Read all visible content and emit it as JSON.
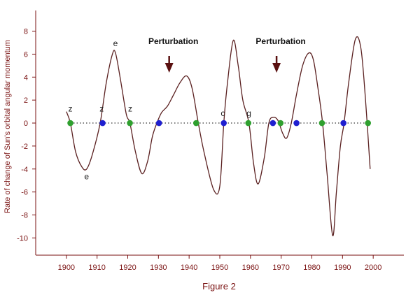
{
  "chart_data": {
    "type": "line",
    "xlabel": "Figure 2",
    "ylabel": "Rate of change of Sun's orbital angular momentum",
    "xlim": [
      1890,
      2010
    ],
    "ylim": [
      -11.5,
      9.8
    ],
    "x_ticks": [
      1900,
      1910,
      1920,
      1930,
      1940,
      1950,
      1960,
      1970,
      1980,
      1990,
      2000
    ],
    "y_ticks": [
      8,
      6,
      4,
      2,
      0,
      -2,
      -4,
      -6,
      -8,
      -10
    ],
    "grid": false,
    "colors": {
      "line": "#5a2020",
      "axis": "#7a1212",
      "green": "#2fa02f",
      "blue": "#1f1fd0",
      "arrow": "#5a1010"
    },
    "series": [
      {
        "x": [
          1900.0,
          1901.3,
          1903.0,
          1905.0,
          1906.6,
          1908.5,
          1911.0,
          1913.0,
          1915.0,
          1916.0,
          1917.5,
          1919.5,
          1920.7,
          1922.5,
          1924.6,
          1926.5,
          1928.0,
          1929.5,
          1931.0,
          1933.0,
          1935.0,
          1937.0,
          1939.2,
          1941.0,
          1943.0,
          1945.0,
          1948.0,
          1950.0,
          1951.3,
          1952.5,
          1954.4,
          1956.0,
          1957.5,
          1959.5,
          1961.0,
          1962.5,
          1964.5,
          1966.0,
          1967.5,
          1969.0,
          1970.5,
          1971.8,
          1973.3,
          1975.0,
          1977.0,
          1979.0,
          1980.5,
          1982.0,
          1983.5,
          1985.0,
          1986.8,
          1988.0,
          1989.3,
          1990.5,
          1992.0,
          1994.2,
          1996.0,
          1997.5,
          1999.0
        ],
        "y": [
          1.0,
          0.0,
          -2.5,
          -3.8,
          -4.0,
          -2.7,
          0.0,
          3.5,
          6.0,
          6.1,
          4.0,
          0.8,
          0.0,
          -2.5,
          -4.4,
          -3.3,
          -1.2,
          0.0,
          0.9,
          1.5,
          2.5,
          3.5,
          4.1,
          3.0,
          0.0,
          -2.7,
          -5.8,
          -5.5,
          0.0,
          3.5,
          7.2,
          5.0,
          2.0,
          0.0,
          -3.5,
          -5.3,
          -3.0,
          0.0,
          0.5,
          0.2,
          -0.9,
          -1.3,
          0.0,
          2.5,
          5.0,
          6.1,
          5.5,
          3.0,
          0.0,
          -4.5,
          -9.8,
          -6.0,
          -2.0,
          0.0,
          3.5,
          7.3,
          6.5,
          2.0,
          -4.0
        ]
      }
    ],
    "zero_points": [
      {
        "x": 1901.3,
        "color": "green"
      },
      {
        "x": 1911.8,
        "color": "blue"
      },
      {
        "x": 1920.7,
        "color": "green"
      },
      {
        "x": 1930.2,
        "color": "blue"
      },
      {
        "x": 1942.3,
        "color": "green"
      },
      {
        "x": 1951.3,
        "color": "blue"
      },
      {
        "x": 1959.3,
        "color": "green"
      },
      {
        "x": 1967.3,
        "color": "blue"
      },
      {
        "x": 1969.8,
        "color": "green"
      },
      {
        "x": 1975.0,
        "color": "blue"
      },
      {
        "x": 1983.3,
        "color": "green"
      },
      {
        "x": 1990.3,
        "color": "blue"
      },
      {
        "x": 1998.3,
        "color": "green"
      }
    ],
    "annotations": [
      {
        "text": "z",
        "x": 1901.3,
        "y": 1.0
      },
      {
        "text": "z",
        "x": 1911.5,
        "y": 1.0
      },
      {
        "text": "z",
        "x": 1920.8,
        "y": 1.0
      },
      {
        "text": "e",
        "x": 1916.0,
        "y": 6.7
      },
      {
        "text": "e",
        "x": 1906.6,
        "y": -4.9
      },
      {
        "text": "c",
        "x": 1951.0,
        "y": 0.6
      },
      {
        "text": "g",
        "x": 1959.5,
        "y": 0.6
      }
    ],
    "perturbations": [
      {
        "label": "Perturbation",
        "x": 1933.5
      },
      {
        "label": "Perturbation",
        "x": 1968.5
      }
    ]
  }
}
